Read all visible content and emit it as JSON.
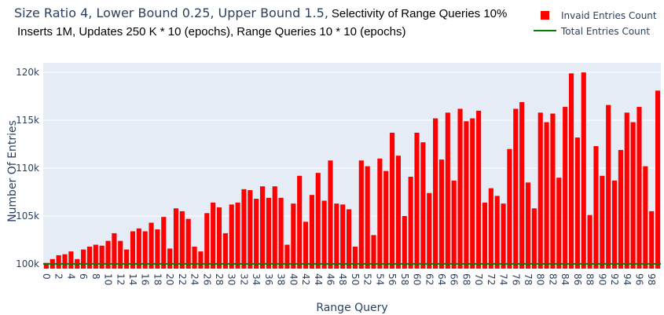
{
  "chart_data": {
    "type": "bar",
    "title_parts": [
      {
        "text": "Size Ratio 4, Lower Bound 0.25, Upper Bound 1.5,",
        "style": "main"
      },
      {
        "text": "Selectivity of Range Queries 10%",
        "style": "black"
      }
    ],
    "subtitle": "Inserts 1M, Updates 250 K * 10 (epochs), Range Queries 10 * 10 (epochs)",
    "xlabel": "Range Query",
    "ylabel": "Number Of Entries",
    "ylim": [
      99500,
      121000
    ],
    "y_ticks": [
      100000,
      105000,
      110000,
      115000,
      120000
    ],
    "y_tick_labels": [
      "100k",
      "105k",
      "110k",
      "115k",
      "120k"
    ],
    "x_tick_labels": [
      "0",
      "2",
      "4",
      "6",
      "8",
      "10",
      "12",
      "14",
      "16",
      "18",
      "20",
      "22",
      "24",
      "26",
      "28",
      "30",
      "32",
      "34",
      "36",
      "38",
      "40",
      "42",
      "44",
      "46",
      "48",
      "50",
      "52",
      "54",
      "56",
      "58",
      "60",
      "62",
      "64",
      "66",
      "68",
      "70",
      "72",
      "74",
      "76",
      "78",
      "80",
      "82",
      "84",
      "86",
      "88",
      "90",
      "92",
      "94",
      "96",
      "98"
    ],
    "x": [
      0,
      1,
      2,
      3,
      4,
      5,
      6,
      7,
      8,
      9,
      10,
      11,
      12,
      13,
      14,
      15,
      16,
      17,
      18,
      19,
      20,
      21,
      22,
      23,
      24,
      25,
      26,
      27,
      28,
      29,
      30,
      31,
      32,
      33,
      34,
      35,
      36,
      37,
      38,
      39,
      40,
      41,
      42,
      43,
      44,
      45,
      46,
      47,
      48,
      49,
      50,
      51,
      52,
      53,
      54,
      55,
      56,
      57,
      58,
      59,
      60,
      61,
      62,
      63,
      64,
      65,
      66,
      67,
      68,
      69,
      70,
      71,
      72,
      73,
      74,
      75,
      76,
      77,
      78,
      79,
      80,
      81,
      82,
      83,
      84,
      85,
      86,
      87,
      88,
      89,
      90,
      91,
      92,
      93,
      94,
      95,
      96,
      97,
      98,
      99
    ],
    "grid": true,
    "legend_position": "top-right",
    "series": [
      {
        "name": "Invaid Entries Count",
        "kind": "bar",
        "color": "#ff0000",
        "values": [
          100100,
          100500,
          100900,
          101000,
          101300,
          100500,
          101500,
          101800,
          102000,
          101900,
          102400,
          103200,
          102400,
          101500,
          103400,
          103700,
          103400,
          104300,
          103600,
          104900,
          101600,
          105800,
          105500,
          104700,
          101800,
          101300,
          105300,
          106400,
          105900,
          103200,
          106200,
          106400,
          107800,
          107700,
          106800,
          108100,
          106900,
          108100,
          106900,
          102000,
          106300,
          109200,
          104400,
          107200,
          109500,
          106600,
          110800,
          106300,
          106200,
          105700,
          101800,
          110800,
          110200,
          103000,
          111000,
          109700,
          113700,
          111300,
          105000,
          109100,
          113700,
          112700,
          107400,
          115200,
          110900,
          115800,
          108700,
          116200,
          114900,
          115200,
          116000,
          106400,
          107900,
          107100,
          106300,
          112000,
          116200,
          116900,
          108500,
          105800,
          115800,
          114800,
          115700,
          109000,
          116400,
          119900,
          113200,
          120000,
          105100,
          112300,
          109200,
          116600,
          108700,
          111900,
          115800,
          114800,
          116400,
          110200,
          105500,
          118100
        ]
      },
      {
        "name": "Total Entries Count",
        "kind": "line",
        "color": "#008000",
        "values": [
          100000,
          100000,
          100000,
          100000,
          100000,
          100000,
          100000,
          100000,
          100000,
          100000,
          100000,
          100000,
          100000,
          100000,
          100000,
          100000,
          100000,
          100000,
          100000,
          100000,
          100000,
          100000,
          100000,
          100000,
          100000,
          100000,
          100000,
          100000,
          100000,
          100000,
          100000,
          100000,
          100000,
          100000,
          100000,
          100000,
          100000,
          100000,
          100000,
          100000,
          100000,
          100000,
          100000,
          100000,
          100000,
          100000,
          100000,
          100000,
          100000,
          100000,
          100000,
          100000,
          100000,
          100000,
          100000,
          100000,
          100000,
          100000,
          100000,
          100000,
          100000,
          100000,
          100000,
          100000,
          100000,
          100000,
          100000,
          100000,
          100000,
          100000,
          100000,
          100000,
          100000,
          100000,
          100000,
          100000,
          100000,
          100000,
          100000,
          100000,
          100000,
          100000,
          100000,
          100000,
          100000,
          100000,
          100000,
          100000,
          100000,
          100000,
          100000,
          100000,
          100000,
          100000,
          100000,
          100000,
          100000,
          100000,
          100000,
          100000
        ]
      }
    ],
    "plot_bg": "#e5ecf6",
    "grid_color": "#ffffff"
  }
}
